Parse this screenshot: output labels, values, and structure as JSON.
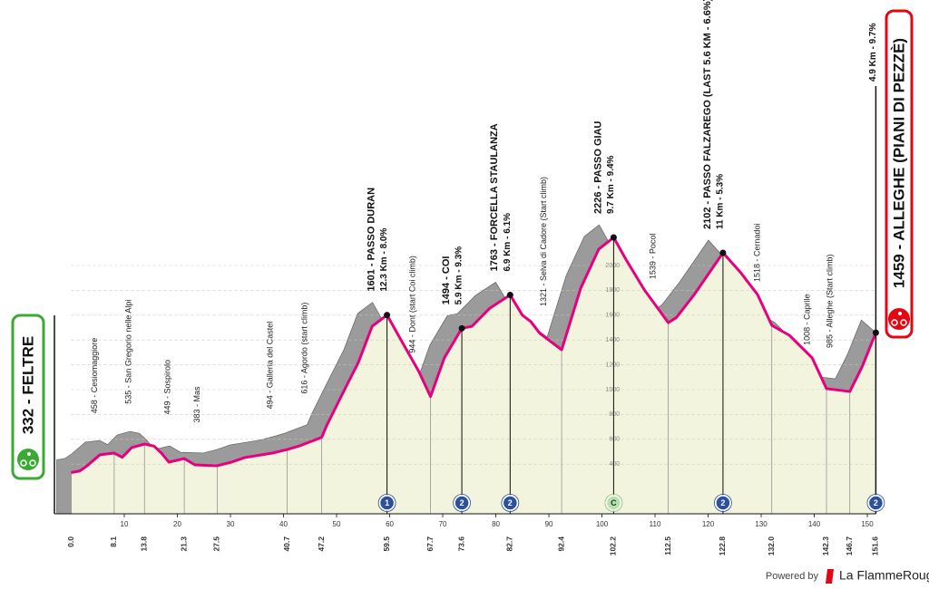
{
  "chart_data": {
    "type": "area",
    "start_label": "332 - FELTRE",
    "finish_label": "1459 - ALLEGHE (PIANI DI PEZZÈ)",
    "finish_climb": "4.9 Km - 9.7%",
    "finish_category": "2",
    "x": [
      0,
      1.6,
      2.8,
      5.4,
      8.1,
      9.6,
      11.4,
      13.8,
      15.6,
      17.0,
      18.4,
      21.3,
      23.3,
      27.5,
      30.2,
      32.7,
      37.9,
      40.7,
      43.0,
      47.2,
      48.1,
      51.5,
      54.1,
      56.7,
      59.5,
      62.6,
      65.5,
      67.7,
      70.3,
      73.6,
      75.5,
      78.9,
      82.7,
      85.0,
      86.6,
      88.3,
      92.4,
      96.0,
      99.4,
      102.2,
      104.5,
      108.0,
      112.5,
      114.0,
      117.4,
      122.8,
      126.0,
      129.3,
      132.0,
      135.3,
      139.6,
      142.3,
      146.7,
      149.0,
      151.6
    ],
    "y": [
      332,
      345,
      380,
      475,
      489,
      455,
      533,
      562,
      545,
      489,
      416,
      445,
      394,
      387,
      416,
      453,
      489,
      518,
      547,
      616,
      708,
      1000,
      1219,
      1511,
      1601,
      1365,
      1146,
      944,
      1256,
      1494,
      1510,
      1657,
      1763,
      1600,
      1548,
      1453,
      1321,
      1818,
      2132,
      2226,
      2050,
      1803,
      1539,
      1580,
      1767,
      2102,
      1950,
      1767,
      1518,
      1438,
      1256,
      1008,
      985,
      1183,
      1459
    ],
    "line_color": "#e6007e",
    "fill_color": "#f3f4de",
    "ridge_color": "#9b9b9b",
    "xlim": [
      0,
      151.6
    ],
    "ylim": [
      0,
      2400
    ],
    "xticks": [
      10,
      20,
      30,
      40,
      50,
      60,
      70,
      80,
      90,
      100,
      110,
      120,
      130,
      140,
      150
    ],
    "yticks": [
      400,
      600,
      800,
      1000,
      1200,
      1400,
      1600,
      1800,
      2000
    ],
    "grid": true,
    "km_markers": [
      {
        "value": 0,
        "label": "0.0"
      },
      8.1,
      13.8,
      21.3,
      27.5,
      40.7,
      47.2,
      59.5,
      67.7,
      73.6,
      82.7,
      92.4,
      102.2,
      112.5,
      122.8,
      {
        "value": 132,
        "label": "132.0"
      },
      142.3,
      146.7,
      151.6
    ],
    "places": [
      {
        "km": 4.5,
        "alt": 458,
        "label": "458 - Cesiomaggiore"
      },
      {
        "km": 10.9,
        "alt": 535,
        "label": "535 - San Gregorio nelle Alpi"
      },
      {
        "km": 18.2,
        "alt": 449,
        "label": "449 - Sospirolo"
      },
      {
        "km": 23.8,
        "alt": 383,
        "label": "383 - Mas"
      },
      {
        "km": 37.5,
        "alt": 494,
        "label": "494 - Galleria del Castel"
      },
      {
        "km": 44.0,
        "alt": 616,
        "label": "616 - Agordo (start climb)"
      },
      {
        "km": 64.4,
        "alt": 944,
        "label": "944 - Dont (start Coi climb)"
      },
      {
        "km": 89.1,
        "alt": 1321,
        "label": "1321 - Selva di Cadore (Start climb)"
      },
      {
        "km": 109.7,
        "alt": 1539,
        "label": "1539 - Pocol"
      },
      {
        "km": 129.3,
        "alt": 1518,
        "label": "1518 - Cernadoi"
      },
      {
        "km": 138.7,
        "alt": 1008,
        "label": "1008 - Caprile"
      },
      {
        "km": 143.0,
        "alt": 985,
        "label": "985 - Alleghe (Start climb)"
      }
    ],
    "climbs": [
      {
        "km": 59.5,
        "alt": 1601,
        "label": "1601 - PASSO DURAN",
        "detail": "12.3 Km - 8.0%",
        "category": "1"
      },
      {
        "km": 73.6,
        "alt": 1494,
        "label": "1494 - COI",
        "detail": "5.9 Km - 9.3%",
        "category": "2"
      },
      {
        "km": 82.7,
        "alt": 1763,
        "label": "1763 - FORCELLA STAULANZA",
        "detail": "6.9 Km - 6.1%",
        "category": "2"
      },
      {
        "km": 102.2,
        "alt": 2226,
        "label": "2226 - PASSO GIAU",
        "detail": "9.7 Km - 9.4%",
        "category": "C"
      },
      {
        "km": 122.8,
        "alt": 2102,
        "label": "2102 - PASSO FALZAREGO (LAST 5.6 KM - 6.6%)",
        "detail": "11 Km - 5.3%",
        "category": "2"
      }
    ]
  },
  "footer": {
    "powered_by": "Powered by",
    "brand": "La FlammeRouge"
  }
}
